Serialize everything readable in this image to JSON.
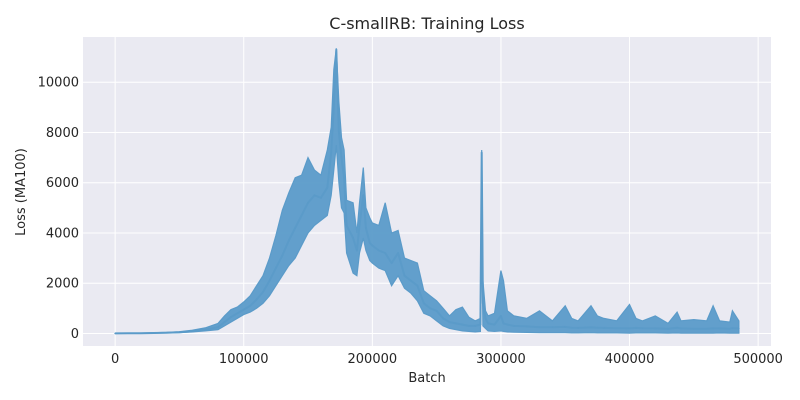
{
  "chart_data": {
    "type": "line",
    "title": "C-smallRB: Training Loss",
    "xlabel": "Batch",
    "ylabel": "Loss (MA100)",
    "xlim": [
      -25000,
      510000
    ],
    "ylim": [
      -500,
      11800
    ],
    "xticks": [
      0,
      100000,
      200000,
      300000,
      400000,
      500000
    ],
    "yticks": [
      0,
      2000,
      4000,
      6000,
      8000,
      10000
    ],
    "grid": true,
    "colors": {
      "line": "#5b9bc9",
      "plot_bg": "#eaeaf2",
      "grid": "#ffffff"
    },
    "series": [
      {
        "x": [
          0,
          20000,
          40000,
          50000,
          60000,
          70000,
          80000,
          85000,
          90000,
          95000,
          100000,
          105000,
          110000,
          115000,
          120000,
          125000,
          130000,
          135000,
          140000,
          145000,
          150000,
          155000,
          160000,
          165000,
          168000,
          170000,
          172000,
          174000,
          176000,
          178000,
          180000,
          185000,
          188000,
          190000,
          193000,
          195000,
          198000,
          200000,
          205000,
          210000,
          215000,
          220000,
          225000,
          230000,
          235000,
          240000,
          245000,
          250000,
          255000,
          260000,
          265000,
          270000,
          275000,
          280000,
          284000,
          285000,
          286000,
          288000,
          290000,
          295000,
          300000,
          302000,
          305000,
          310000,
          320000,
          330000,
          340000,
          350000,
          355000,
          360000,
          370000,
          375000,
          380000,
          390000,
          400000,
          405000,
          410000,
          420000,
          430000,
          437000,
          440000,
          450000,
          460000,
          465000,
          470000,
          478000,
          480000,
          485000
        ],
        "y": [
          0,
          10,
          30,
          50,
          90,
          150,
          250,
          450,
          650,
          800,
          950,
          1100,
          1350,
          1650,
          2100,
          2600,
          3100,
          3700,
          4200,
          4700,
          5200,
          5500,
          5400,
          5800,
          7200,
          9000,
          11300,
          8000,
          7000,
          6200,
          4300,
          3800,
          3300,
          4300,
          5500,
          4200,
          3600,
          3500,
          3300,
          3200,
          2800,
          3200,
          2300,
          2100,
          1900,
          1200,
          1000,
          900,
          600,
          450,
          400,
          350,
          300,
          300,
          350,
          7200,
          1200,
          600,
          400,
          350,
          700,
          400,
          350,
          300,
          280,
          250,
          250,
          260,
          230,
          220,
          240,
          230,
          220,
          210,
          200,
          220,
          210,
          200,
          190,
          230,
          200,
          190,
          190,
          200,
          200,
          190,
          210,
          200
        ],
        "hi": [
          0,
          15,
          40,
          70,
          130,
          220,
          400,
          700,
          950,
          1050,
          1250,
          1500,
          1900,
          2300,
          3000,
          3900,
          4900,
          5600,
          6200,
          6300,
          7000,
          6500,
          6300,
          7300,
          8200,
          10500,
          11350,
          9200,
          7800,
          7300,
          5300,
          5200,
          4000,
          5200,
          6600,
          5000,
          4600,
          4400,
          4300,
          5200,
          4000,
          4100,
          3000,
          2900,
          2800,
          1700,
          1500,
          1300,
          1000,
          700,
          950,
          1050,
          650,
          500,
          600,
          7300,
          2100,
          900,
          700,
          800,
          2500,
          2100,
          900,
          700,
          600,
          900,
          500,
          1100,
          600,
          500,
          1100,
          700,
          600,
          500,
          1150,
          600,
          500,
          700,
          400,
          850,
          500,
          550,
          500,
          1100,
          500,
          450,
          900,
          500
        ],
        "lo": [
          0,
          5,
          20,
          30,
          60,
          100,
          150,
          300,
          450,
          600,
          750,
          850,
          1000,
          1200,
          1500,
          1900,
          2300,
          2700,
          3000,
          3500,
          4000,
          4300,
          4500,
          4700,
          5500,
          6500,
          7500,
          6000,
          5000,
          4800,
          3200,
          2400,
          2300,
          3200,
          3800,
          3300,
          2900,
          2800,
          2600,
          2500,
          1900,
          2300,
          1800,
          1600,
          1300,
          800,
          700,
          500,
          300,
          200,
          150,
          100,
          80,
          60,
          80,
          4000,
          300,
          200,
          100,
          80,
          100,
          80,
          60,
          50,
          40,
          30,
          30,
          30,
          20,
          20,
          30,
          20,
          20,
          20,
          10,
          20,
          20,
          20,
          10,
          20,
          10,
          10,
          10,
          10,
          20,
          10,
          10,
          10
        ]
      }
    ]
  }
}
